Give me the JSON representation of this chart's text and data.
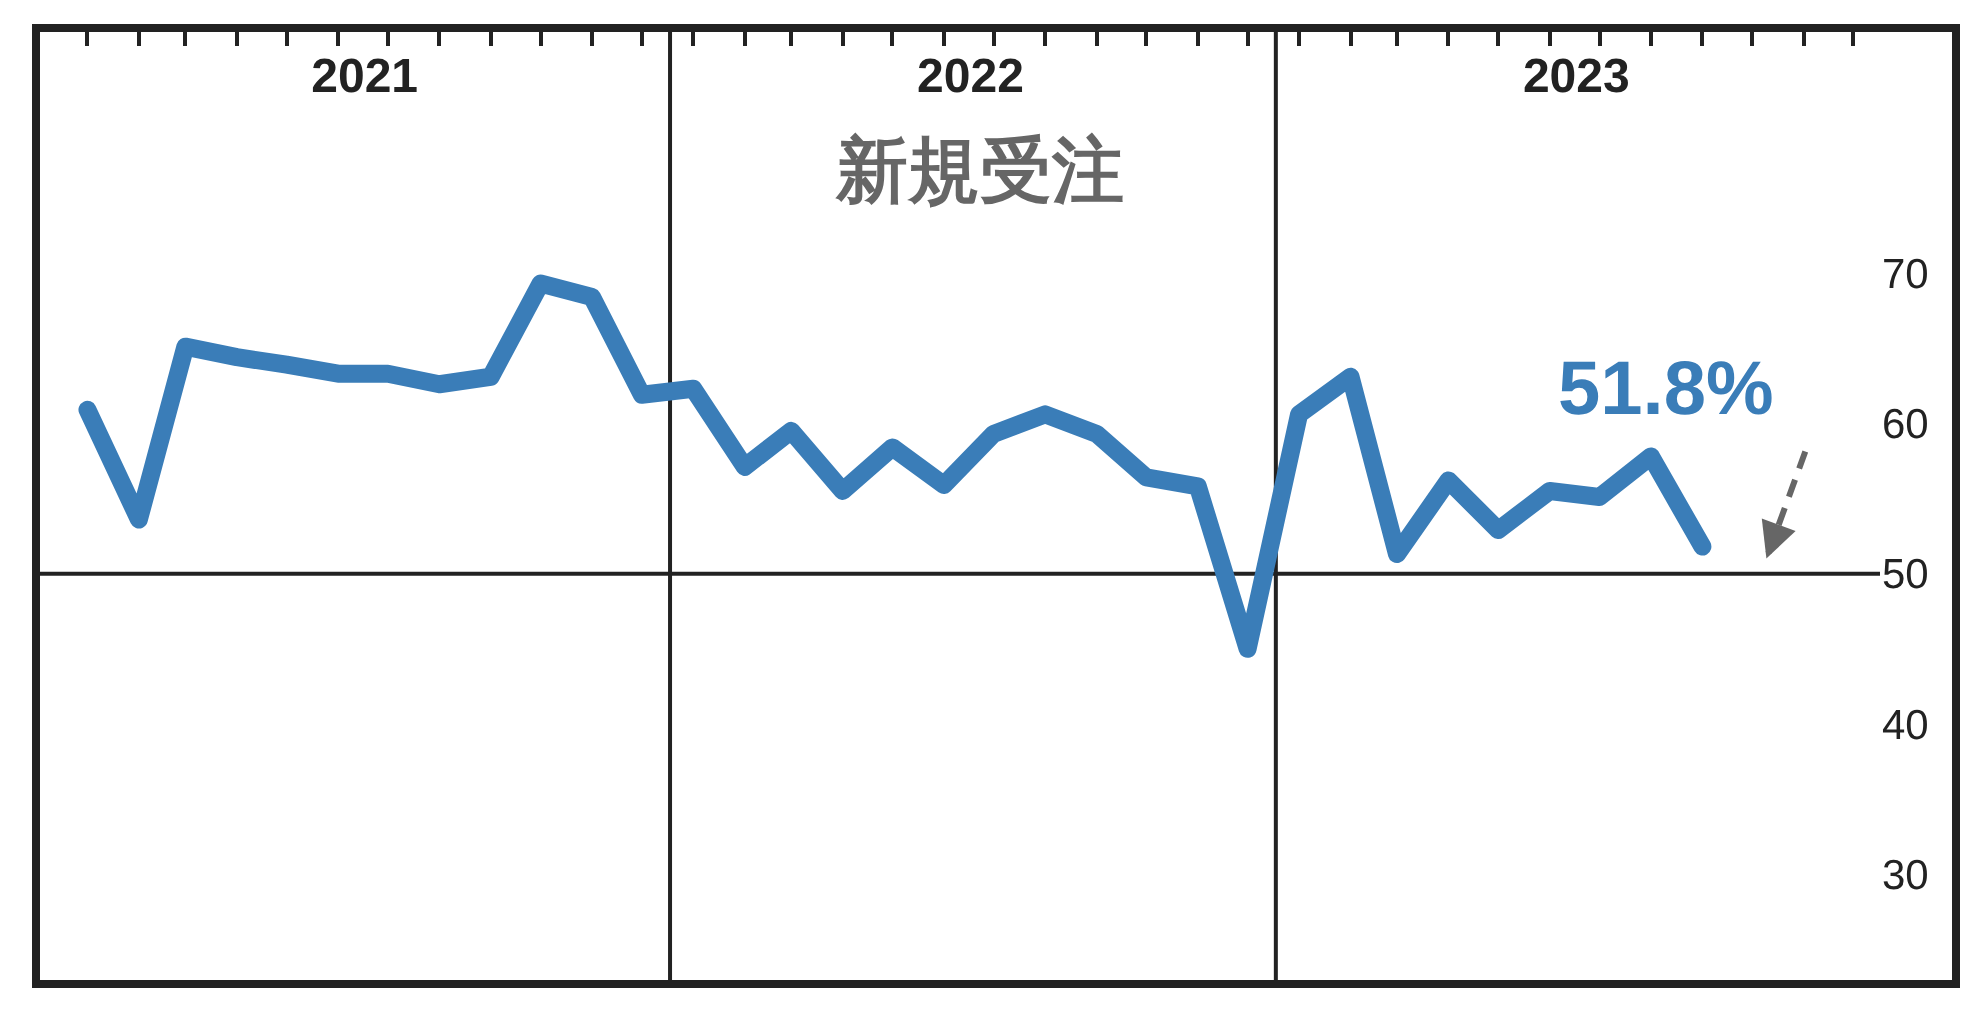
{
  "chart_data": {
    "type": "line",
    "title": "新規受注",
    "x": [
      "2021-01-15",
      "2021-02-15",
      "2021-03-15",
      "2021-04-15",
      "2021-05-15",
      "2021-06-15",
      "2021-07-15",
      "2021-08-15",
      "2021-09-15",
      "2021-10-15",
      "2021-11-15",
      "2021-12-15",
      "2022-01-15",
      "2022-02-15",
      "2022-03-15",
      "2022-04-15",
      "2022-05-15",
      "2022-06-15",
      "2022-07-15",
      "2022-08-15",
      "2022-09-15",
      "2022-10-15",
      "2022-11-15",
      "2022-12-15",
      "2023-01-15",
      "2023-02-15",
      "2023-03-15",
      "2023-04-15",
      "2023-05-15",
      "2023-06-15",
      "2023-07-15",
      "2023-08-15",
      "2023-09-15"
    ],
    "series": [
      {
        "color": "#3a7db8",
        "values": [
          60.9,
          53.6,
          65.1,
          64.4,
          63.9,
          63.3,
          63.3,
          62.6,
          63.1,
          69.3,
          68.4,
          61.9,
          62.3,
          57.1,
          59.5,
          55.5,
          58.4,
          55.9,
          59.3,
          60.6,
          59.3,
          56.4,
          55.8,
          45.0,
          60.6,
          63.1,
          51.3,
          56.2,
          52.9,
          55.5,
          55.1,
          57.8,
          51.8
        ]
      }
    ],
    "xlim": [
      "2020-12-15",
      "2023-12-31"
    ],
    "xticks": [
      {
        "value": "2021-01-15",
        "label": null
      },
      {
        "value": "2021-02-15",
        "label": null
      },
      {
        "value": "2021-03-15",
        "label": null
      },
      {
        "value": "2021-04-15",
        "label": null
      },
      {
        "value": "2021-05-15",
        "label": null
      },
      {
        "value": "2021-06-15",
        "label": null
      },
      {
        "value": "2021-07-15",
        "label": null
      },
      {
        "value": "2021-08-15",
        "label": null
      },
      {
        "value": "2021-09-15",
        "label": null
      },
      {
        "value": "2021-10-15",
        "label": null
      },
      {
        "value": "2021-11-15",
        "label": null
      },
      {
        "value": "2021-12-15",
        "label": null
      },
      {
        "value": "2022-01-15",
        "label": null
      },
      {
        "value": "2022-02-15",
        "label": null
      },
      {
        "value": "2022-03-15",
        "label": null
      },
      {
        "value": "2022-04-15",
        "label": null
      },
      {
        "value": "2022-05-15",
        "label": null
      },
      {
        "value": "2022-06-15",
        "label": null
      },
      {
        "value": "2022-07-15",
        "label": null
      },
      {
        "value": "2022-08-15",
        "label": null
      },
      {
        "value": "2022-09-15",
        "label": null
      },
      {
        "value": "2022-10-15",
        "label": null
      },
      {
        "value": "2022-11-15",
        "label": null
      },
      {
        "value": "2022-12-15",
        "label": null
      },
      {
        "value": "2023-01-15",
        "label": null
      },
      {
        "value": "2023-02-15",
        "label": null
      },
      {
        "value": "2023-03-15",
        "label": null
      },
      {
        "value": "2023-04-15",
        "label": null
      },
      {
        "value": "2023-05-15",
        "label": null
      },
      {
        "value": "2023-06-15",
        "label": null
      },
      {
        "value": "2023-07-15",
        "label": null
      },
      {
        "value": "2023-08-15",
        "label": null
      },
      {
        "value": "2023-09-15",
        "label": null
      },
      {
        "value": "2023-10-15",
        "label": null
      },
      {
        "value": "2023-11-15",
        "label": null
      },
      {
        "value": "2023-12-15",
        "label": null
      },
      {
        "value": "2021-07-01",
        "label": "2021"
      },
      {
        "value": "2022-07-01",
        "label": "2022"
      },
      {
        "value": "2023-07-01",
        "label": "2023"
      }
    ],
    "ylim": [
      22.7,
      86.3
    ],
    "yticks": [
      30,
      40,
      50,
      60,
      70
    ],
    "ref_lines": [
      {
        "axis": "y",
        "value": 50,
        "label": null,
        "color": "#222222"
      },
      {
        "axis": "x",
        "value": "2022-01-01",
        "label": null,
        "color": "#222222"
      },
      {
        "axis": "x",
        "value": "2023-01-01",
        "label": null,
        "color": "#222222"
      }
    ],
    "annotations": [
      {
        "text": "51.8%",
        "x": "2023-09-15",
        "y": 51.8
      }
    ],
    "grid": false,
    "line_style": "solid"
  }
}
